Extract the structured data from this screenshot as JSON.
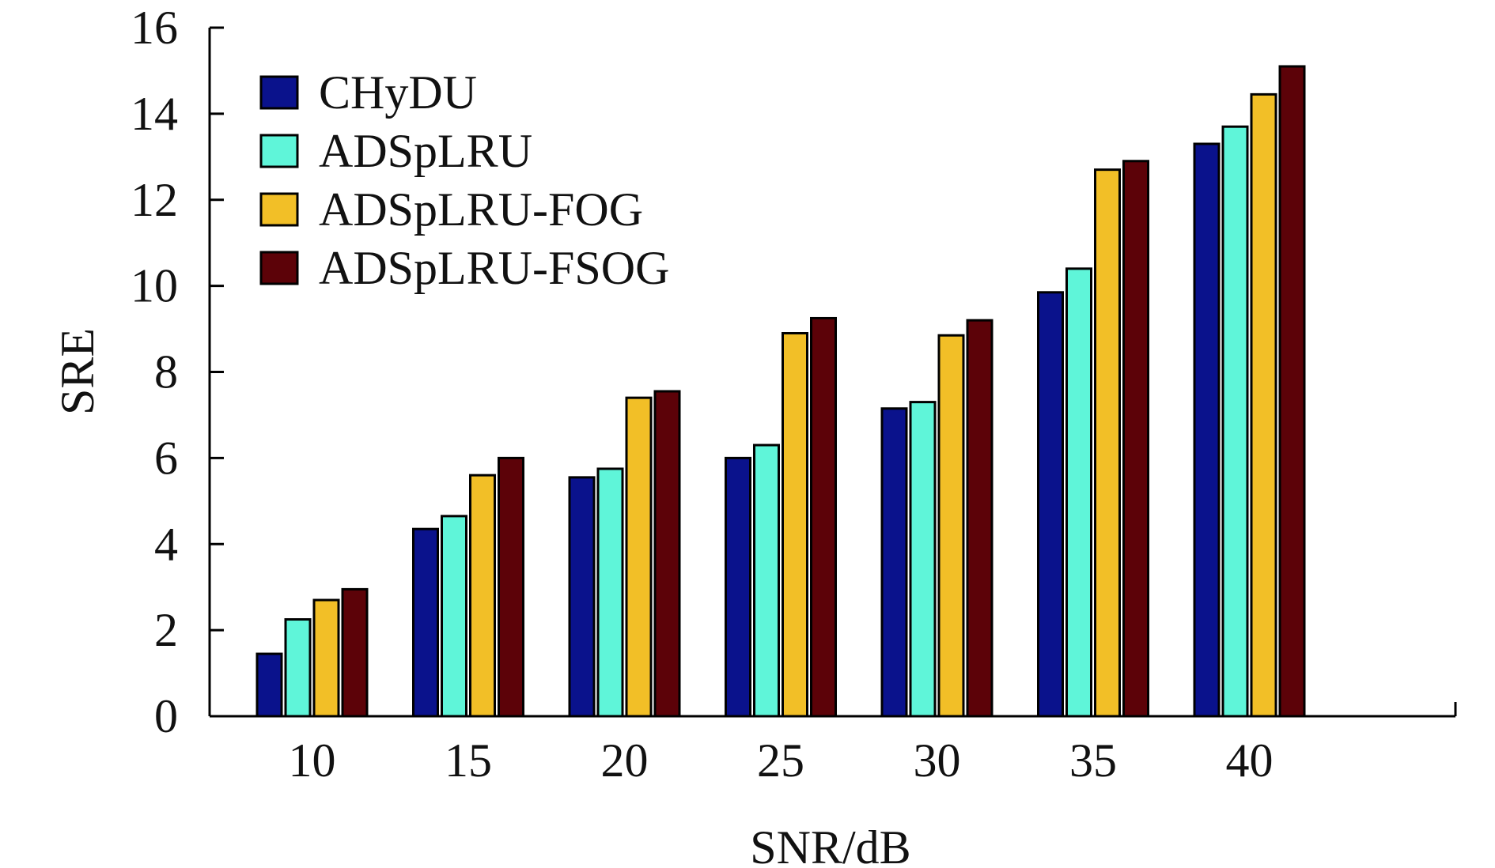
{
  "chart_data": {
    "type": "bar",
    "xlabel": "SNR/dB",
    "ylabel": "SRE",
    "categories": [
      "10",
      "15",
      "20",
      "25",
      "30",
      "35",
      "40"
    ],
    "ylim": [
      0,
      16
    ],
    "yticks": [
      0,
      2,
      4,
      6,
      8,
      10,
      12,
      14,
      16
    ],
    "legend_position": "top-left",
    "grid": false,
    "series": [
      {
        "name": "CHyDU",
        "color": "#0a128c",
        "values": [
          1.45,
          4.35,
          5.55,
          6.0,
          7.15,
          9.85,
          13.3
        ]
      },
      {
        "name": "ADSpLRU",
        "color": "#5ff5d9",
        "values": [
          2.25,
          4.65,
          5.75,
          6.3,
          7.3,
          10.4,
          13.7
        ]
      },
      {
        "name": "ADSpLRU-FOG",
        "color": "#f2bf27",
        "values": [
          2.7,
          5.6,
          7.4,
          8.9,
          8.85,
          12.7,
          14.45
        ]
      },
      {
        "name": "ADSpLRU-FSOG",
        "color": "#5c0208",
        "values": [
          2.95,
          6.0,
          7.55,
          9.25,
          9.2,
          12.9,
          15.1
        ]
      }
    ]
  }
}
